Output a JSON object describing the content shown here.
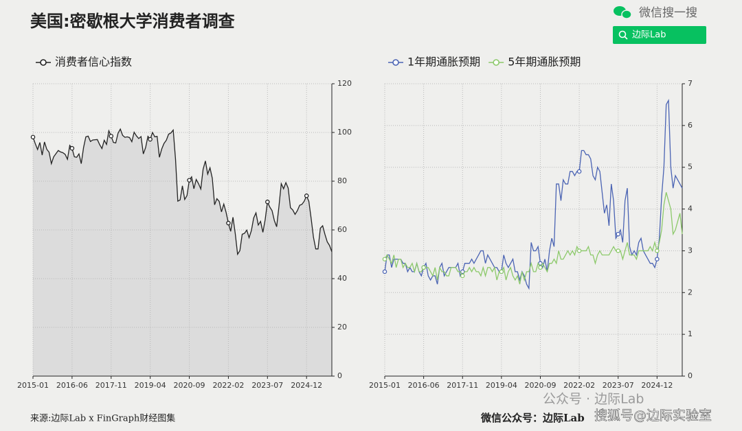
{
  "header": {
    "title": "美国:密歇根大学消费者调查",
    "search_brand": "微信搜一搜",
    "search_query": "边际Lab"
  },
  "footer": {
    "source": "来源:边际Lab x FinGraph财经图集",
    "account": "微信公众号：边际Lab",
    "watermark": "公众号 · 边际Lab",
    "watermark2": "搜狐号@边际实验室"
  },
  "chart_data": [
    {
      "type": "area",
      "x": [
        "2015-01",
        "2015-02",
        "2015-03",
        "2015-04",
        "2015-05",
        "2015-06",
        "2015-07",
        "2015-08",
        "2015-09",
        "2015-10",
        "2015-11",
        "2015-12",
        "2016-01",
        "2016-02",
        "2016-03",
        "2016-04",
        "2016-05",
        "2016-06",
        "2016-07",
        "2016-08",
        "2016-09",
        "2016-10",
        "2016-11",
        "2016-12",
        "2017-01",
        "2017-02",
        "2017-03",
        "2017-04",
        "2017-05",
        "2017-06",
        "2017-07",
        "2017-08",
        "2017-09",
        "2017-10",
        "2017-11",
        "2017-12",
        "2018-01",
        "2018-02",
        "2018-03",
        "2018-04",
        "2018-05",
        "2018-06",
        "2018-07",
        "2018-08",
        "2018-09",
        "2018-10",
        "2018-11",
        "2018-12",
        "2019-01",
        "2019-02",
        "2019-03",
        "2019-04",
        "2019-05",
        "2019-06",
        "2019-07",
        "2019-08",
        "2019-09",
        "2019-10",
        "2019-11",
        "2019-12",
        "2020-01",
        "2020-02",
        "2020-03",
        "2020-04",
        "2020-05",
        "2020-06",
        "2020-07",
        "2020-08",
        "2020-09",
        "2020-10",
        "2020-11",
        "2020-12",
        "2021-01",
        "2021-02",
        "2021-03",
        "2021-04",
        "2021-05",
        "2021-06",
        "2021-07",
        "2021-08",
        "2021-09",
        "2021-10",
        "2021-11",
        "2021-12",
        "2022-01",
        "2022-02",
        "2022-03",
        "2022-04",
        "2022-05",
        "2022-06",
        "2022-07",
        "2022-08",
        "2022-09",
        "2022-10",
        "2022-11",
        "2022-12",
        "2023-01",
        "2023-02",
        "2023-03",
        "2023-04",
        "2023-05",
        "2023-06",
        "2023-07",
        "2023-08",
        "2023-09",
        "2023-10",
        "2023-11",
        "2023-12",
        "2024-01",
        "2024-02",
        "2024-03",
        "2024-04",
        "2024-05",
        "2024-06",
        "2024-07",
        "2024-08",
        "2024-09",
        "2024-10",
        "2024-11",
        "2024-12",
        "2025-01",
        "2025-02",
        "2025-03",
        "2025-04",
        "2025-05",
        "2025-06",
        "2025-07",
        "2025-08",
        "2025-09",
        "2025-10",
        "2025-11"
      ],
      "xticks": [
        "2015-01",
        "2016-06",
        "2017-11",
        "2019-04",
        "2020-09",
        "2022-02",
        "2023-07",
        "2024-12"
      ],
      "ylim": [
        0,
        120
      ],
      "yticks": [
        0,
        20,
        40,
        60,
        80,
        100,
        120
      ],
      "grid": true,
      "markers": true,
      "fill": "#dcdcdc",
      "series": [
        {
          "name": "消费者信心指数",
          "color": "#222222",
          "values": [
            98.1,
            95.4,
            93.0,
            95.9,
            90.7,
            96.1,
            93.1,
            91.9,
            87.2,
            90.0,
            91.3,
            92.6,
            92.0,
            91.7,
            91.0,
            89.0,
            94.7,
            93.5,
            90.0,
            89.8,
            91.2,
            87.2,
            93.8,
            98.2,
            98.5,
            96.3,
            96.9,
            97.0,
            97.1,
            95.0,
            93.4,
            96.8,
            95.1,
            100.7,
            98.5,
            95.9,
            95.7,
            99.7,
            101.4,
            98.8,
            98.0,
            98.2,
            97.9,
            96.2,
            100.1,
            98.6,
            97.5,
            98.3,
            91.2,
            93.8,
            98.4,
            97.2,
            100.0,
            98.2,
            98.4,
            89.8,
            93.2,
            95.5,
            96.8,
            99.3,
            99.8,
            101.0,
            89.1,
            71.8,
            72.3,
            78.1,
            72.5,
            74.1,
            80.4,
            81.8,
            76.9,
            80.7,
            79.0,
            76.8,
            84.9,
            88.3,
            82.9,
            85.5,
            81.2,
            70.3,
            72.8,
            71.7,
            67.4,
            70.6,
            67.2,
            62.8,
            59.4,
            65.2,
            58.4,
            50.0,
            51.5,
            58.2,
            58.6,
            59.9,
            56.8,
            59.7,
            64.9,
            67.0,
            62.0,
            63.5,
            59.0,
            64.2,
            71.5,
            69.4,
            67.9,
            63.8,
            61.3,
            69.7,
            79.0,
            76.9,
            79.4,
            77.2,
            69.1,
            68.2,
            66.4,
            67.9,
            70.1,
            70.5,
            71.8,
            74.0,
            71.7,
            64.7,
            57.0,
            52.2,
            52.2,
            60.7,
            61.7,
            58.2,
            55.1,
            53.6,
            51.0
          ]
        }
      ]
    },
    {
      "type": "line",
      "x": [
        "2015-01",
        "2015-02",
        "2015-03",
        "2015-04",
        "2015-05",
        "2015-06",
        "2015-07",
        "2015-08",
        "2015-09",
        "2015-10",
        "2015-11",
        "2015-12",
        "2016-01",
        "2016-02",
        "2016-03",
        "2016-04",
        "2016-05",
        "2016-06",
        "2016-07",
        "2016-08",
        "2016-09",
        "2016-10",
        "2016-11",
        "2016-12",
        "2017-01",
        "2017-02",
        "2017-03",
        "2017-04",
        "2017-05",
        "2017-06",
        "2017-07",
        "2017-08",
        "2017-09",
        "2017-10",
        "2017-11",
        "2017-12",
        "2018-01",
        "2018-02",
        "2018-03",
        "2018-04",
        "2018-05",
        "2018-06",
        "2018-07",
        "2018-08",
        "2018-09",
        "2018-10",
        "2018-11",
        "2018-12",
        "2019-01",
        "2019-02",
        "2019-03",
        "2019-04",
        "2019-05",
        "2019-06",
        "2019-07",
        "2019-08",
        "2019-09",
        "2019-10",
        "2019-11",
        "2019-12",
        "2020-01",
        "2020-02",
        "2020-03",
        "2020-04",
        "2020-05",
        "2020-06",
        "2020-07",
        "2020-08",
        "2020-09",
        "2020-10",
        "2020-11",
        "2020-12",
        "2021-01",
        "2021-02",
        "2021-03",
        "2021-04",
        "2021-05",
        "2021-06",
        "2021-07",
        "2021-08",
        "2021-09",
        "2021-10",
        "2021-11",
        "2021-12",
        "2022-01",
        "2022-02",
        "2022-03",
        "2022-04",
        "2022-05",
        "2022-06",
        "2022-07",
        "2022-08",
        "2022-09",
        "2022-10",
        "2022-11",
        "2022-12",
        "2023-01",
        "2023-02",
        "2023-03",
        "2023-04",
        "2023-05",
        "2023-06",
        "2023-07",
        "2023-08",
        "2023-09",
        "2023-10",
        "2023-11",
        "2023-12",
        "2024-01",
        "2024-02",
        "2024-03",
        "2024-04",
        "2024-05",
        "2024-06",
        "2024-07",
        "2024-08",
        "2024-09",
        "2024-10",
        "2024-11",
        "2024-12",
        "2025-01",
        "2025-02",
        "2025-03",
        "2025-04",
        "2025-05",
        "2025-06",
        "2025-07",
        "2025-08",
        "2025-09",
        "2025-10",
        "2025-11"
      ],
      "xticks": [
        "2015-01",
        "2016-06",
        "2017-11",
        "2019-04",
        "2020-09",
        "2022-02",
        "2023-07",
        "2024-12"
      ],
      "ylim": [
        0,
        7
      ],
      "yticks": [
        0,
        1,
        2,
        3,
        4,
        5,
        6,
        7
      ],
      "grid": true,
      "markers": true,
      "series": [
        {
          "name": "1年期通胀预期",
          "color": "#4a63b3",
          "values": [
            2.5,
            2.9,
            2.9,
            2.6,
            2.8,
            2.8,
            2.8,
            2.8,
            2.7,
            2.7,
            2.5,
            2.6,
            2.5,
            2.5,
            2.7,
            2.5,
            2.4,
            2.6,
            2.7,
            2.4,
            2.3,
            2.4,
            2.4,
            2.2,
            2.6,
            2.7,
            2.4,
            2.5,
            2.6,
            2.6,
            2.6,
            2.6,
            2.7,
            2.4,
            2.5,
            2.7,
            2.7,
            2.7,
            2.8,
            2.7,
            2.8,
            2.9,
            3.0,
            3.0,
            2.7,
            2.9,
            2.8,
            2.7,
            2.6,
            2.6,
            2.5,
            2.5,
            2.9,
            2.7,
            2.6,
            2.7,
            2.8,
            2.5,
            2.5,
            2.3,
            2.5,
            2.4,
            2.2,
            2.1,
            3.2,
            3.0,
            3.0,
            3.1,
            2.7,
            2.6,
            2.8,
            2.5,
            3.0,
            3.3,
            3.1,
            4.6,
            4.6,
            4.2,
            4.7,
            4.6,
            4.6,
            4.9,
            4.9,
            4.8,
            4.9,
            4.9,
            5.4,
            5.4,
            5.3,
            5.3,
            5.2,
            4.8,
            4.7,
            5.0,
            4.9,
            4.4,
            3.9,
            4.1,
            3.6,
            4.6,
            4.2,
            3.3,
            3.4,
            3.5,
            3.2,
            4.2,
            4.5,
            3.1,
            2.9,
            3.0,
            2.9,
            3.2,
            3.3,
            3.0,
            2.9,
            2.8,
            2.7,
            2.7,
            2.6,
            2.8,
            3.3,
            4.3,
            5.0,
            6.5,
            6.6,
            5.0,
            4.5,
            4.8,
            4.7,
            4.6,
            4.5
          ]
        },
        {
          "name": "5年期通胀预期",
          "color": "#8cc96a",
          "values": [
            2.8,
            2.9,
            2.8,
            2.7,
            2.9,
            2.6,
            2.8,
            2.8,
            2.6,
            2.7,
            2.6,
            2.6,
            2.7,
            2.5,
            2.7,
            2.5,
            2.5,
            2.6,
            2.6,
            2.6,
            2.5,
            2.4,
            2.6,
            2.3,
            2.6,
            2.5,
            2.5,
            2.4,
            2.4,
            2.6,
            2.6,
            2.6,
            2.5,
            2.5,
            2.4,
            2.5,
            2.5,
            2.6,
            2.5,
            2.6,
            2.5,
            2.5,
            2.4,
            2.6,
            2.4,
            2.6,
            2.6,
            2.5,
            2.6,
            2.3,
            2.5,
            2.5,
            2.6,
            2.3,
            2.5,
            2.6,
            2.4,
            2.3,
            2.4,
            2.2,
            2.5,
            2.3,
            2.5,
            2.5,
            2.7,
            2.5,
            2.5,
            2.7,
            2.6,
            2.7,
            2.6,
            2.5,
            2.7,
            2.7,
            2.8,
            2.7,
            3.0,
            2.8,
            2.8,
            2.9,
            3.0,
            2.9,
            3.0,
            2.9,
            3.1,
            3.0,
            3.0,
            3.0,
            3.0,
            3.1,
            2.9,
            2.9,
            2.7,
            2.9,
            3.0,
            2.9,
            2.9,
            2.9,
            2.9,
            3.0,
            3.1,
            3.0,
            3.0,
            3.0,
            2.8,
            3.0,
            3.2,
            2.9,
            2.9,
            2.9,
            2.8,
            3.0,
            3.0,
            3.0,
            3.0,
            3.0,
            3.1,
            3.0,
            3.2,
            3.0,
            3.2,
            3.5,
            4.1,
            4.4,
            4.2,
            4.0,
            3.4,
            3.5,
            3.7,
            3.9,
            3.4
          ]
        }
      ]
    }
  ]
}
